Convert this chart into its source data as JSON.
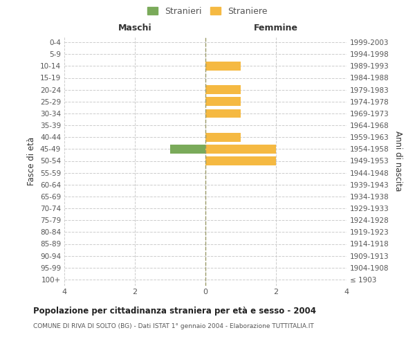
{
  "age_groups": [
    "100+",
    "95-99",
    "90-94",
    "85-89",
    "80-84",
    "75-79",
    "70-74",
    "65-69",
    "60-64",
    "55-59",
    "50-54",
    "45-49",
    "40-44",
    "35-39",
    "30-34",
    "25-29",
    "20-24",
    "15-19",
    "10-14",
    "5-9",
    "0-4"
  ],
  "birth_years": [
    "≤ 1903",
    "1904-1908",
    "1909-1913",
    "1914-1918",
    "1919-1923",
    "1924-1928",
    "1929-1933",
    "1934-1938",
    "1939-1943",
    "1944-1948",
    "1949-1953",
    "1954-1958",
    "1959-1963",
    "1964-1968",
    "1969-1973",
    "1974-1978",
    "1979-1983",
    "1984-1988",
    "1989-1993",
    "1994-1998",
    "1999-2003"
  ],
  "maschi_stranieri": [
    0,
    0,
    0,
    0,
    0,
    0,
    0,
    0,
    0,
    0,
    0,
    1,
    0,
    0,
    0,
    0,
    0,
    0,
    0,
    0,
    0
  ],
  "femmine_straniere": [
    0,
    0,
    0,
    0,
    0,
    0,
    0,
    0,
    0,
    0,
    2,
    2,
    1,
    0,
    1,
    1,
    1,
    0,
    1,
    0,
    0
  ],
  "male_color": "#7aaa5a",
  "female_color": "#f5b942",
  "xlim": 4,
  "title": "Popolazione per cittadinanza straniera per età e sesso - 2004",
  "subtitle": "COMUNE DI RIVA DI SOLTO (BG) - Dati ISTAT 1° gennaio 2004 - Elaborazione TUTTITALIA.IT",
  "ylabel_left": "Fasce di età",
  "ylabel_right": "Anni di nascita",
  "legend_male": "Stranieri",
  "legend_female": "Straniere",
  "header_left": "Maschi",
  "header_right": "Femmine",
  "background_color": "#ffffff",
  "grid_color": "#cccccc",
  "bar_height": 0.75
}
